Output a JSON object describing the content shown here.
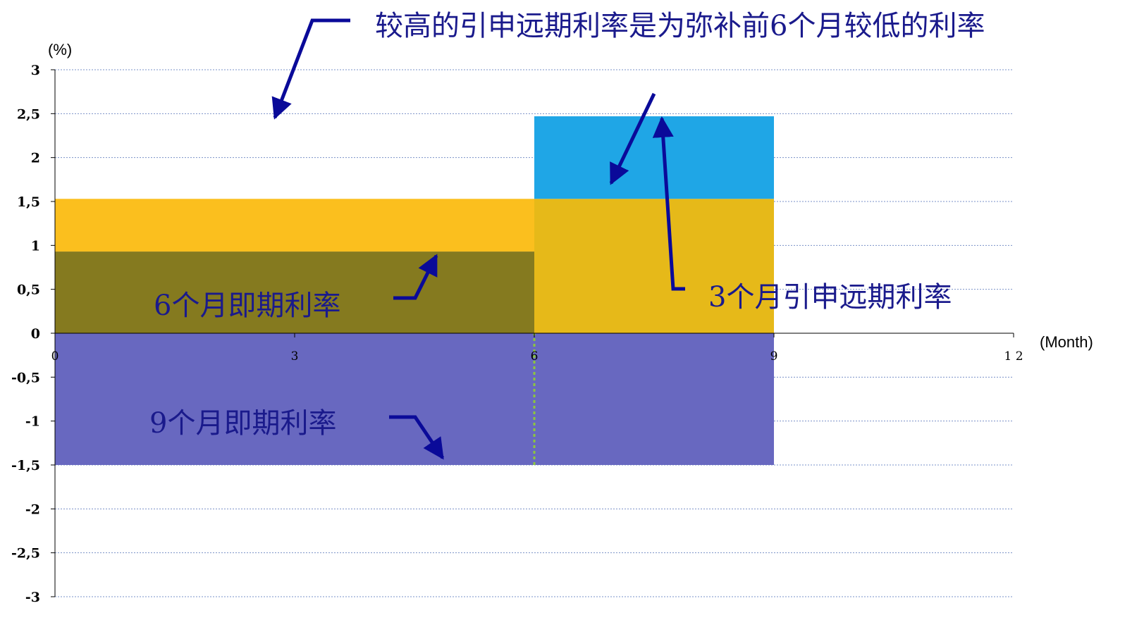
{
  "chart_data": {
    "type": "area",
    "title": "",
    "y_unit": "(%)",
    "x_unit": "(Month)",
    "xlim": [
      0,
      12
    ],
    "ylim": [
      -3,
      3
    ],
    "x_ticks": [
      "0",
      "3",
      "6",
      "9",
      "1 2"
    ],
    "y_ticks": [
      "3",
      "2,5",
      "2",
      "1,5",
      "1",
      "0,5",
      "0",
      "-0,5",
      "-1",
      "-1,5",
      "-2",
      "-2,5",
      "-3"
    ],
    "grid": true,
    "blocks": [
      {
        "name": "9-month-spot",
        "x_start": 0,
        "x_end": 9,
        "y_bottom": -1.5,
        "y_top": 0,
        "color": "#6868c0"
      },
      {
        "name": "6-month-spot",
        "x_start": 0,
        "x_end": 6,
        "y_bottom": 0,
        "y_top": 0.93,
        "color": "#857a1f"
      },
      {
        "name": "6-month-upper",
        "x_start": 0,
        "x_end": 6,
        "y_bottom": 0.93,
        "y_top": 1.53,
        "color": "#fbbf1e"
      },
      {
        "name": "forward-lower",
        "x_start": 6,
        "x_end": 9,
        "y_bottom": 0,
        "y_top": 1.53,
        "color": "#e6b919"
      },
      {
        "name": "forward-upper",
        "x_start": 6,
        "x_end": 9,
        "y_bottom": 1.53,
        "y_top": 2.47,
        "color": "#1fa6e6"
      }
    ],
    "marker_line": {
      "x": 6,
      "y_from": -1.5,
      "y_to": 0,
      "color": "#8cc63e"
    },
    "annotations": {
      "top_note": "较高的引申远期利率是为弥补前6个月较低的利率",
      "six_month_spot": "6个月即期利率",
      "nine_month_spot": "9个月即期利率",
      "three_month_forward": "3个月引申远期利率"
    },
    "colors": {
      "annotation_text": "#1a1a8c",
      "arrow": "#0a0a99",
      "gridline": "#7a90c8",
      "axis": "#000000"
    }
  }
}
